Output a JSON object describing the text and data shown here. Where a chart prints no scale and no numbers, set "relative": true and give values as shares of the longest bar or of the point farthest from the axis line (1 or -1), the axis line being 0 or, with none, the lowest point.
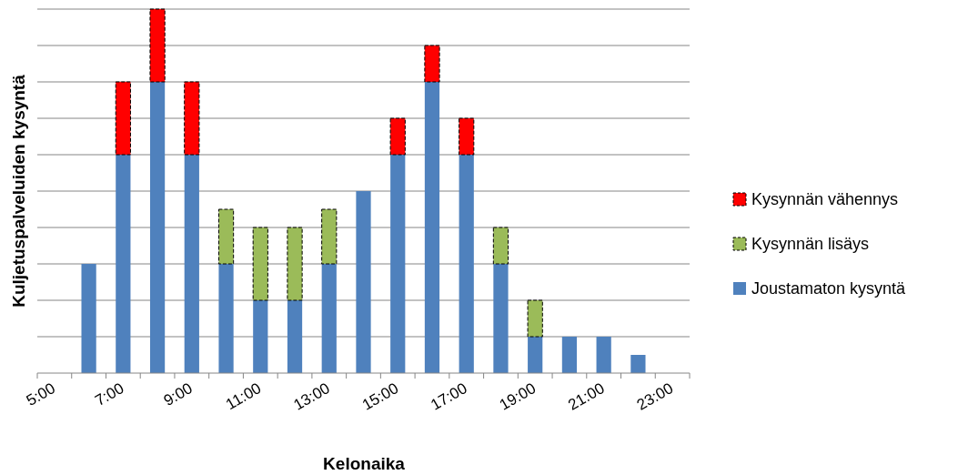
{
  "chart_data": {
    "type": "bar",
    "stacked": true,
    "relative": true,
    "grid": "y",
    "legend": "right",
    "xlabel": "Kelonaika",
    "ylabel": "Kuljetuspalveluiden kysyntä",
    "categories": [
      "5:00",
      null,
      "7:00",
      null,
      "9:00",
      null,
      "11:00",
      null,
      "13:00",
      null,
      "15:00",
      null,
      "17:00",
      null,
      "19:00",
      null,
      "21:00",
      null,
      "23:00"
    ],
    "series": [
      {
        "name": "Joustamaton kysyntä",
        "color": "#4f81bd",
        "values": [
          null,
          0.3,
          0.6,
          0.8,
          0.6,
          0.3,
          0.2,
          0.2,
          0.3,
          0.5,
          0.6,
          0.8,
          0.6,
          0.3,
          0.1,
          0.1,
          0.1,
          0.05,
          null
        ]
      },
      {
        "name": "Kysynnän lisäys",
        "color": "#9bbb59",
        "line_style": "dashed",
        "values": [
          null,
          null,
          null,
          null,
          null,
          0.15,
          0.2,
          0.2,
          0.15,
          null,
          null,
          null,
          null,
          0.1,
          0.1,
          null,
          null,
          null,
          null
        ]
      },
      {
        "name": "Kysynnän vähennys",
        "color": "#ff0000",
        "line_style": "dashed",
        "values": [
          null,
          null,
          0.2,
          0.2,
          0.2,
          null,
          null,
          null,
          null,
          null,
          0.1,
          0.1,
          0.1,
          null,
          null,
          null,
          null,
          null,
          null
        ]
      }
    ]
  }
}
